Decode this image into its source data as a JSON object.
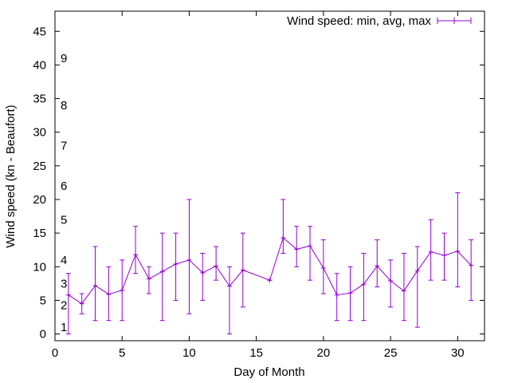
{
  "chart_data": {
    "type": "line",
    "xlabel": "Day of Month",
    "ylabel": "Wind speed (kn - Beaufort)",
    "xlim": [
      0,
      32
    ],
    "ylim": [
      -1,
      48
    ],
    "xticks": [
      0,
      5,
      10,
      15,
      20,
      25,
      30
    ],
    "yticks": [
      0,
      5,
      10,
      15,
      20,
      25,
      30,
      35,
      40,
      45
    ],
    "grid": false,
    "legend": {
      "position": "top-right",
      "label": "Wind speed: min, avg, max"
    },
    "series_color": "#9400d3",
    "series": [
      {
        "name": "Wind speed: min, avg, max",
        "x": [
          1,
          2,
          3,
          4,
          5,
          6,
          7,
          8,
          9,
          10,
          11,
          12,
          13,
          14,
          16,
          17,
          18,
          19,
          20,
          21,
          22,
          23,
          24,
          25,
          26,
          27,
          28,
          29,
          30,
          31
        ],
        "avg": [
          5.8,
          4.5,
          7.2,
          5.9,
          6.5,
          11.8,
          8.2,
          9.3,
          10.4,
          11.0,
          9.1,
          10.1,
          7.1,
          9.5,
          8.0,
          14.3,
          12.6,
          13.1,
          9.8,
          5.8,
          6.1,
          7.4,
          10.1,
          7.9,
          6.4,
          9.4,
          12.2,
          11.7,
          12.3,
          10.2
        ],
        "min": [
          0,
          3,
          2,
          2,
          2,
          9,
          6,
          2,
          5,
          3,
          5,
          8,
          0,
          4,
          8,
          12,
          10,
          8,
          6,
          2,
          2,
          2,
          7,
          4,
          2,
          1,
          8,
          8,
          7,
          5
        ],
        "max": [
          9,
          6,
          13,
          10,
          11,
          16,
          10,
          15,
          15,
          20,
          12,
          13,
          10,
          15,
          8,
          20,
          16,
          16,
          14,
          9,
          10,
          12,
          14,
          11,
          12,
          13,
          17,
          15,
          21,
          14
        ]
      }
    ],
    "beaufort_labels": [
      {
        "label": "1",
        "y": 1
      },
      {
        "label": "2",
        "y": 4.3
      },
      {
        "label": "3",
        "y": 7.5
      },
      {
        "label": "4",
        "y": 11
      },
      {
        "label": "5",
        "y": 17
      },
      {
        "label": "6",
        "y": 22
      },
      {
        "label": "7",
        "y": 28
      },
      {
        "label": "8",
        "y": 34
      },
      {
        "label": "9",
        "y": 41
      }
    ]
  }
}
